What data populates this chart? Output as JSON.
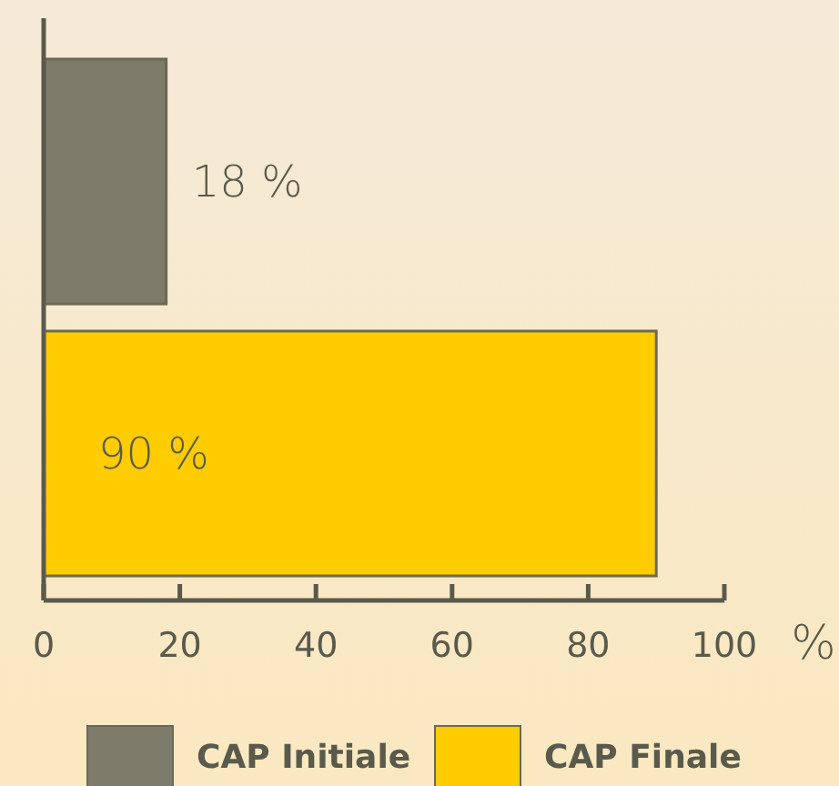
{
  "chart_data": {
    "type": "bar",
    "orientation": "horizontal",
    "categories": [
      null,
      null
    ],
    "series": [
      {
        "name": "CAP Initiale",
        "color": "#7d7b6a",
        "values": [
          18,
          null
        ],
        "value_labels": [
          "18 %",
          null
        ]
      },
      {
        "name": "CAP Finale",
        "color": "#ffcc00",
        "values": [
          null,
          90
        ],
        "value_labels": [
          null,
          "90 %"
        ]
      }
    ],
    "xlabel": "%",
    "xlim": [
      0,
      100
    ],
    "xticks": [
      0,
      20,
      40,
      60,
      80,
      100
    ],
    "legend": "bottom",
    "grid": false
  }
}
